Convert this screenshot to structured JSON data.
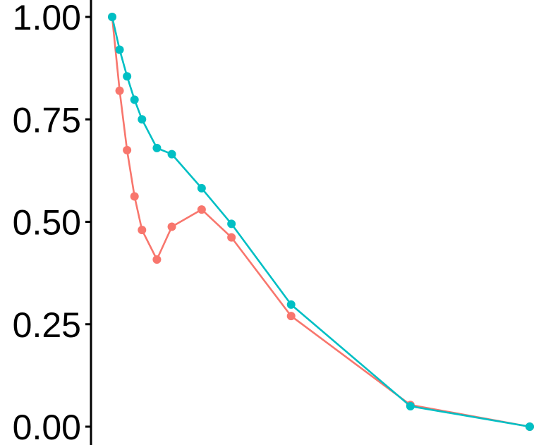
{
  "chart_data": {
    "type": "line",
    "title": "",
    "xlabel": "",
    "ylabel": "",
    "ylim": [
      0,
      1
    ],
    "y_ticks": [
      "0.00",
      "0.25",
      "0.50",
      "0.75",
      "1.00"
    ],
    "y_tick_values": [
      0,
      0.25,
      0.5,
      0.75,
      1.0
    ],
    "grid": false,
    "legend": "none",
    "series": [
      {
        "color": "#F8766D",
        "x": [
          1,
          1.5,
          2,
          2.5,
          3,
          4,
          5,
          7,
          9,
          13,
          21,
          29
        ],
        "values": [
          1.0,
          0.82,
          0.675,
          0.562,
          0.48,
          0.408,
          0.488,
          0.53,
          0.462,
          0.27,
          0.053,
          0.0
        ]
      },
      {
        "color": "#00BFC4",
        "x": [
          1,
          1.5,
          2,
          2.5,
          3,
          4,
          5,
          7,
          9,
          13,
          21,
          29
        ],
        "values": [
          1.0,
          0.92,
          0.855,
          0.798,
          0.75,
          0.68,
          0.665,
          0.582,
          0.495,
          0.298,
          0.05,
          0.0
        ]
      }
    ]
  }
}
